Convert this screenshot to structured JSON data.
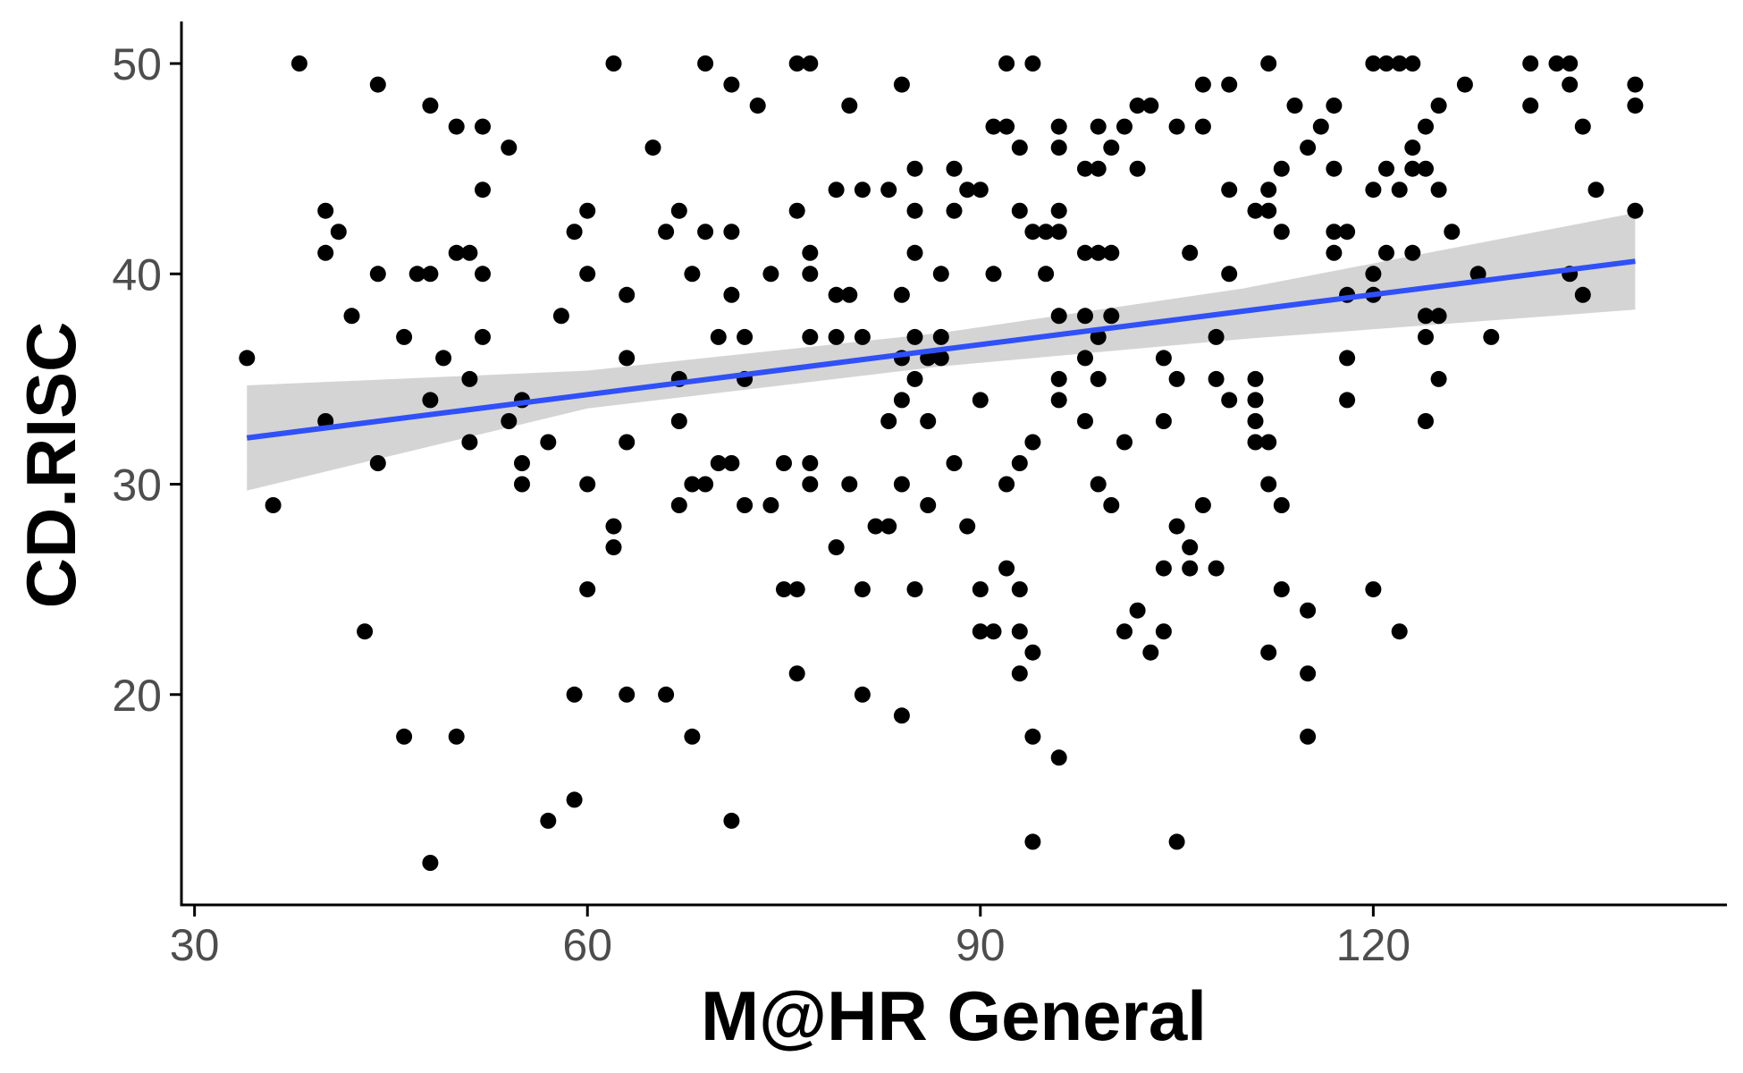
{
  "chart_data": {
    "type": "scatter",
    "title": "",
    "xlabel": "M@HR General",
    "ylabel": "CD.RISC",
    "xlim": [
      29,
      147
    ],
    "ylim": [
      10,
      52
    ],
    "xticks": [
      30,
      60,
      90,
      120
    ],
    "yticks": [
      20,
      30,
      40,
      50
    ],
    "grid": false,
    "legend": "none",
    "colors": {
      "points": "#000000",
      "fit_line": "#3050f8",
      "confidence_band": "#cccccc",
      "axis": "#000000",
      "tick_text": "#4d4d4d"
    },
    "points": [
      [
        34,
        36
      ],
      [
        36,
        29
      ],
      [
        38,
        50
      ],
      [
        40,
        43
      ],
      [
        40,
        41
      ],
      [
        40,
        33
      ],
      [
        41,
        42
      ],
      [
        42,
        38
      ],
      [
        43,
        23
      ],
      [
        44,
        49
      ],
      [
        44,
        40
      ],
      [
        44,
        31
      ],
      [
        46,
        37
      ],
      [
        46,
        18
      ],
      [
        47,
        40
      ],
      [
        48,
        48
      ],
      [
        48,
        40
      ],
      [
        48,
        34
      ],
      [
        48,
        12
      ],
      [
        49,
        36
      ],
      [
        50,
        47
      ],
      [
        50,
        41
      ],
      [
        50,
        18
      ],
      [
        51,
        41
      ],
      [
        51,
        35
      ],
      [
        51,
        32
      ],
      [
        52,
        47
      ],
      [
        52,
        44
      ],
      [
        52,
        40
      ],
      [
        52,
        37
      ],
      [
        54,
        46
      ],
      [
        54,
        33
      ],
      [
        55,
        34
      ],
      [
        55,
        31
      ],
      [
        55,
        30
      ],
      [
        57,
        32
      ],
      [
        57,
        14
      ],
      [
        58,
        38
      ],
      [
        59,
        42
      ],
      [
        59,
        20
      ],
      [
        59,
        15
      ],
      [
        60,
        43
      ],
      [
        60,
        40
      ],
      [
        60,
        30
      ],
      [
        60,
        25
      ],
      [
        62,
        50
      ],
      [
        62,
        28
      ],
      [
        62,
        27
      ],
      [
        63,
        39
      ],
      [
        63,
        36
      ],
      [
        63,
        32
      ],
      [
        63,
        20
      ],
      [
        65,
        46
      ],
      [
        66,
        42
      ],
      [
        66,
        20
      ],
      [
        67,
        43
      ],
      [
        67,
        35
      ],
      [
        67,
        33
      ],
      [
        67,
        29
      ],
      [
        68,
        40
      ],
      [
        68,
        30
      ],
      [
        68,
        18
      ],
      [
        69,
        50
      ],
      [
        69,
        42
      ],
      [
        69,
        30
      ],
      [
        70,
        37
      ],
      [
        70,
        31
      ],
      [
        71,
        49
      ],
      [
        71,
        42
      ],
      [
        71,
        39
      ],
      [
        71,
        31
      ],
      [
        71,
        14
      ],
      [
        72,
        37
      ],
      [
        72,
        35
      ],
      [
        72,
        29
      ],
      [
        73,
        48
      ],
      [
        74,
        40
      ],
      [
        74,
        29
      ],
      [
        75,
        31
      ],
      [
        75,
        25
      ],
      [
        76,
        50
      ],
      [
        76,
        43
      ],
      [
        76,
        25
      ],
      [
        76,
        21
      ],
      [
        77,
        50
      ],
      [
        77,
        41
      ],
      [
        77,
        40
      ],
      [
        77,
        37
      ],
      [
        77,
        31
      ],
      [
        77,
        30
      ],
      [
        79,
        44
      ],
      [
        79,
        39
      ],
      [
        79,
        37
      ],
      [
        79,
        27
      ],
      [
        80,
        48
      ],
      [
        80,
        39
      ],
      [
        80,
        30
      ],
      [
        81,
        44
      ],
      [
        81,
        37
      ],
      [
        81,
        25
      ],
      [
        81,
        20
      ],
      [
        82,
        28
      ],
      [
        83,
        44
      ],
      [
        83,
        33
      ],
      [
        83,
        28
      ],
      [
        84,
        49
      ],
      [
        84,
        39
      ],
      [
        84,
        36
      ],
      [
        84,
        34
      ],
      [
        84,
        30
      ],
      [
        84,
        19
      ],
      [
        85,
        45
      ],
      [
        85,
        43
      ],
      [
        85,
        41
      ],
      [
        85,
        37
      ],
      [
        85,
        35
      ],
      [
        85,
        25
      ],
      [
        86,
        36
      ],
      [
        86,
        33
      ],
      [
        86,
        29
      ],
      [
        87,
        40
      ],
      [
        87,
        37
      ],
      [
        87,
        36
      ],
      [
        88,
        45
      ],
      [
        88,
        43
      ],
      [
        88,
        31
      ],
      [
        89,
        44
      ],
      [
        89,
        28
      ],
      [
        90,
        44
      ],
      [
        90,
        34
      ],
      [
        90,
        25
      ],
      [
        90,
        23
      ],
      [
        91,
        47
      ],
      [
        91,
        40
      ],
      [
        91,
        23
      ],
      [
        92,
        50
      ],
      [
        92,
        47
      ],
      [
        92,
        30
      ],
      [
        92,
        26
      ],
      [
        93,
        46
      ],
      [
        93,
        43
      ],
      [
        93,
        31
      ],
      [
        93,
        25
      ],
      [
        93,
        23
      ],
      [
        93,
        21
      ],
      [
        94,
        50
      ],
      [
        94,
        42
      ],
      [
        94,
        32
      ],
      [
        94,
        22
      ],
      [
        94,
        18
      ],
      [
        94,
        13
      ],
      [
        95,
        42
      ],
      [
        95,
        40
      ],
      [
        96,
        47
      ],
      [
        96,
        46
      ],
      [
        96,
        43
      ],
      [
        96,
        42
      ],
      [
        96,
        38
      ],
      [
        96,
        35
      ],
      [
        96,
        34
      ],
      [
        96,
        17
      ],
      [
        98,
        45
      ],
      [
        98,
        41
      ],
      [
        98,
        38
      ],
      [
        98,
        36
      ],
      [
        98,
        33
      ],
      [
        99,
        47
      ],
      [
        99,
        45
      ],
      [
        99,
        41
      ],
      [
        99,
        37
      ],
      [
        99,
        35
      ],
      [
        99,
        30
      ],
      [
        100,
        46
      ],
      [
        100,
        41
      ],
      [
        100,
        38
      ],
      [
        100,
        29
      ],
      [
        101,
        47
      ],
      [
        101,
        32
      ],
      [
        101,
        23
      ],
      [
        102,
        48
      ],
      [
        102,
        45
      ],
      [
        102,
        24
      ],
      [
        103,
        48
      ],
      [
        103,
        22
      ],
      [
        104,
        36
      ],
      [
        104,
        33
      ],
      [
        104,
        26
      ],
      [
        104,
        23
      ],
      [
        105,
        47
      ],
      [
        105,
        35
      ],
      [
        105,
        28
      ],
      [
        105,
        13
      ],
      [
        106,
        41
      ],
      [
        106,
        27
      ],
      [
        106,
        26
      ],
      [
        107,
        49
      ],
      [
        107,
        47
      ],
      [
        107,
        29
      ],
      [
        108,
        37
      ],
      [
        108,
        35
      ],
      [
        108,
        26
      ],
      [
        109,
        49
      ],
      [
        109,
        44
      ],
      [
        109,
        40
      ],
      [
        109,
        34
      ],
      [
        111,
        43
      ],
      [
        111,
        35
      ],
      [
        111,
        34
      ],
      [
        111,
        33
      ],
      [
        111,
        32
      ],
      [
        112,
        50
      ],
      [
        112,
        44
      ],
      [
        112,
        43
      ],
      [
        112,
        32
      ],
      [
        112,
        30
      ],
      [
        112,
        22
      ],
      [
        113,
        45
      ],
      [
        113,
        42
      ],
      [
        113,
        29
      ],
      [
        113,
        25
      ],
      [
        114,
        48
      ],
      [
        115,
        46
      ],
      [
        115,
        24
      ],
      [
        115,
        21
      ],
      [
        115,
        18
      ],
      [
        116,
        47
      ],
      [
        117,
        48
      ],
      [
        117,
        45
      ],
      [
        117,
        42
      ],
      [
        117,
        41
      ],
      [
        118,
        42
      ],
      [
        118,
        39
      ],
      [
        118,
        36
      ],
      [
        118,
        34
      ],
      [
        120,
        50
      ],
      [
        120,
        44
      ],
      [
        120,
        40
      ],
      [
        120,
        39
      ],
      [
        120,
        25
      ],
      [
        121,
        50
      ],
      [
        121,
        45
      ],
      [
        121,
        41
      ],
      [
        122,
        50
      ],
      [
        122,
        44
      ],
      [
        122,
        23
      ],
      [
        123,
        50
      ],
      [
        123,
        46
      ],
      [
        123,
        45
      ],
      [
        123,
        41
      ],
      [
        124,
        47
      ],
      [
        124,
        45
      ],
      [
        124,
        38
      ],
      [
        124,
        37
      ],
      [
        124,
        33
      ],
      [
        125,
        48
      ],
      [
        125,
        44
      ],
      [
        125,
        38
      ],
      [
        125,
        35
      ],
      [
        126,
        42
      ],
      [
        127,
        49
      ],
      [
        128,
        40
      ],
      [
        129,
        37
      ],
      [
        132,
        50
      ],
      [
        132,
        48
      ],
      [
        134,
        50
      ],
      [
        135,
        50
      ],
      [
        135,
        49
      ],
      [
        135,
        40
      ],
      [
        136,
        47
      ],
      [
        136,
        39
      ],
      [
        137,
        44
      ],
      [
        140,
        49
      ],
      [
        140,
        48
      ],
      [
        140,
        43
      ]
    ],
    "fit_line": {
      "x_start": 34,
      "x_end": 140,
      "y_start": 32.2,
      "y_end": 40.6
    },
    "confidence_band": {
      "x": [
        34,
        60,
        87,
        110,
        140
      ],
      "lower": [
        29.7,
        33.6,
        35.6,
        36.9,
        38.3
      ],
      "upper": [
        34.7,
        35.4,
        37.2,
        39.3,
        42.9
      ]
    }
  }
}
